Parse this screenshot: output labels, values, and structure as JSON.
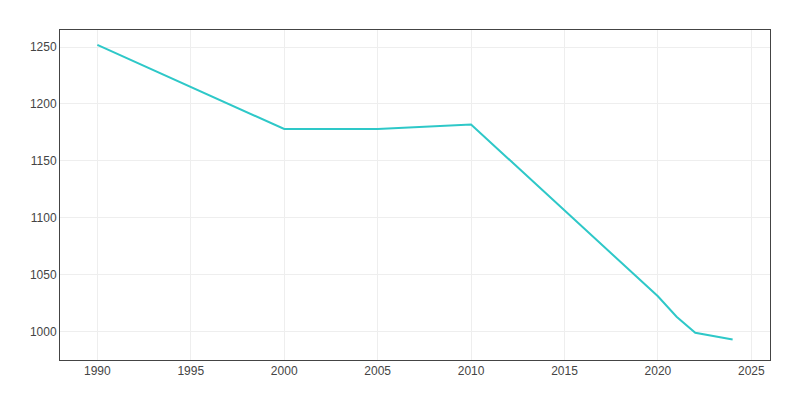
{
  "chart_data": {
    "type": "line",
    "x": [
      1990,
      2000,
      2005,
      2010,
      2020,
      2021,
      2022,
      2024
    ],
    "values": [
      1252,
      1178,
      1178,
      1182,
      1031,
      1013,
      999,
      993
    ],
    "color": "#2ec8c8",
    "xlim": [
      1988,
      2026
    ],
    "ylim": [
      975,
      1265
    ],
    "xticks": [
      1990,
      1995,
      2000,
      2005,
      2010,
      2015,
      2020,
      2025
    ],
    "yticks": [
      1000,
      1050,
      1100,
      1150,
      1200,
      1250
    ],
    "grid": true
  }
}
